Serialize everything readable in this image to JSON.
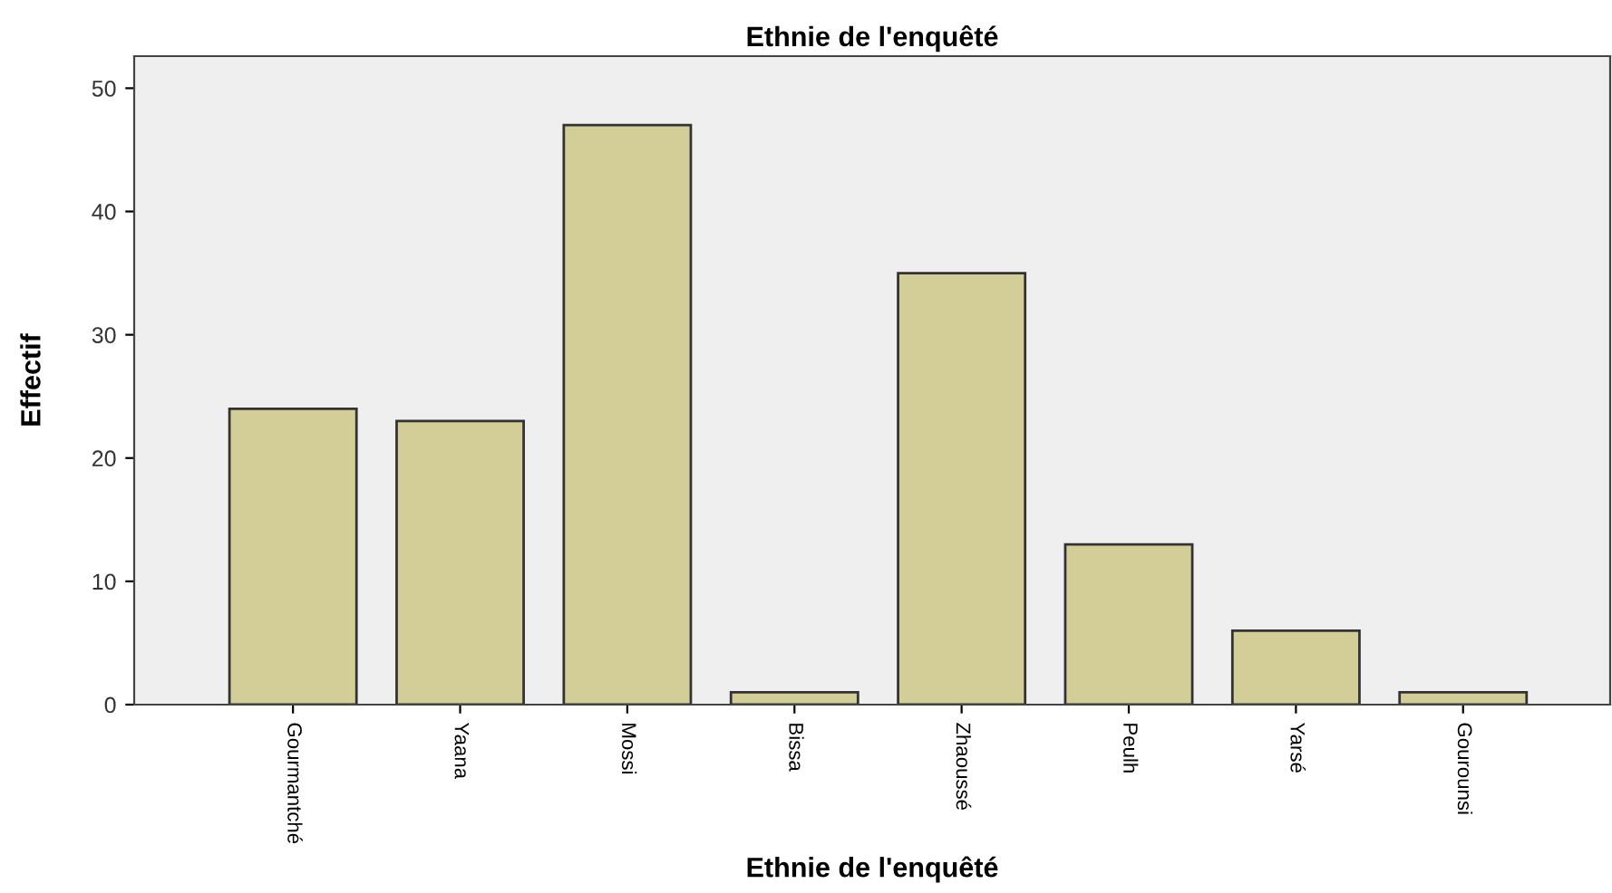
{
  "chart_data": {
    "type": "bar",
    "title": "Ethnie de l'enquêté",
    "xlabel": "Ethnie de l'enquêté",
    "ylabel": "Effectif",
    "categories": [
      "Gourmantché",
      "Yaana",
      "Mossi",
      "Bissa",
      "Zhaoussé",
      "Peulh",
      "Yarsé",
      "Gourounsi"
    ],
    "values": [
      24,
      23,
      47,
      1,
      35,
      13,
      6,
      1
    ],
    "color": "#d3ce97",
    "ylim": [
      0,
      52.6
    ],
    "yticks": [
      0,
      10,
      20,
      30,
      40,
      50
    ],
    "grid": false,
    "legend": false
  }
}
